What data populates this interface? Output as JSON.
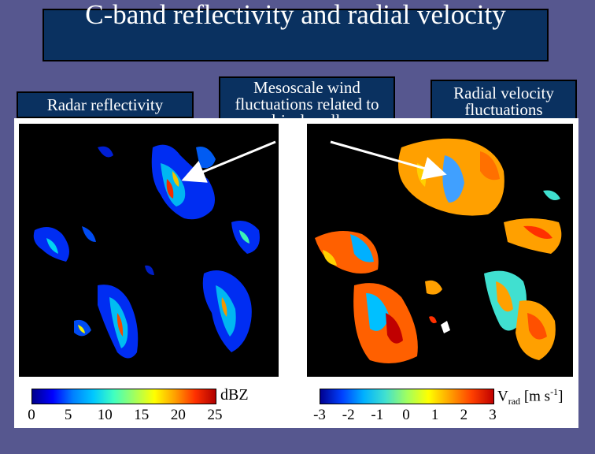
{
  "title": "C-band reflectivity and radial velocity",
  "labels": {
    "reflectivity": "Radar reflectivity",
    "mesoscale": "Mesoscale wind fluctuations related to drizzle cells",
    "radial": "Radial velocity fluctuations"
  },
  "colorbars": {
    "reflectivity": {
      "unit": "dBZ",
      "ticks": [
        "0",
        "5",
        "10",
        "15",
        "20",
        "25"
      ]
    },
    "velocity": {
      "unit_main": "V",
      "unit_sub": "rad",
      "unit_rest": " [m s",
      "unit_sup": "-1",
      "unit_end": "]",
      "ticks": [
        "-3",
        "-2",
        "-1",
        "0",
        "1",
        "2",
        "3"
      ]
    }
  },
  "colors": {
    "background": "#56578f",
    "box": "#0a3160",
    "arrow": "#ffffff"
  }
}
